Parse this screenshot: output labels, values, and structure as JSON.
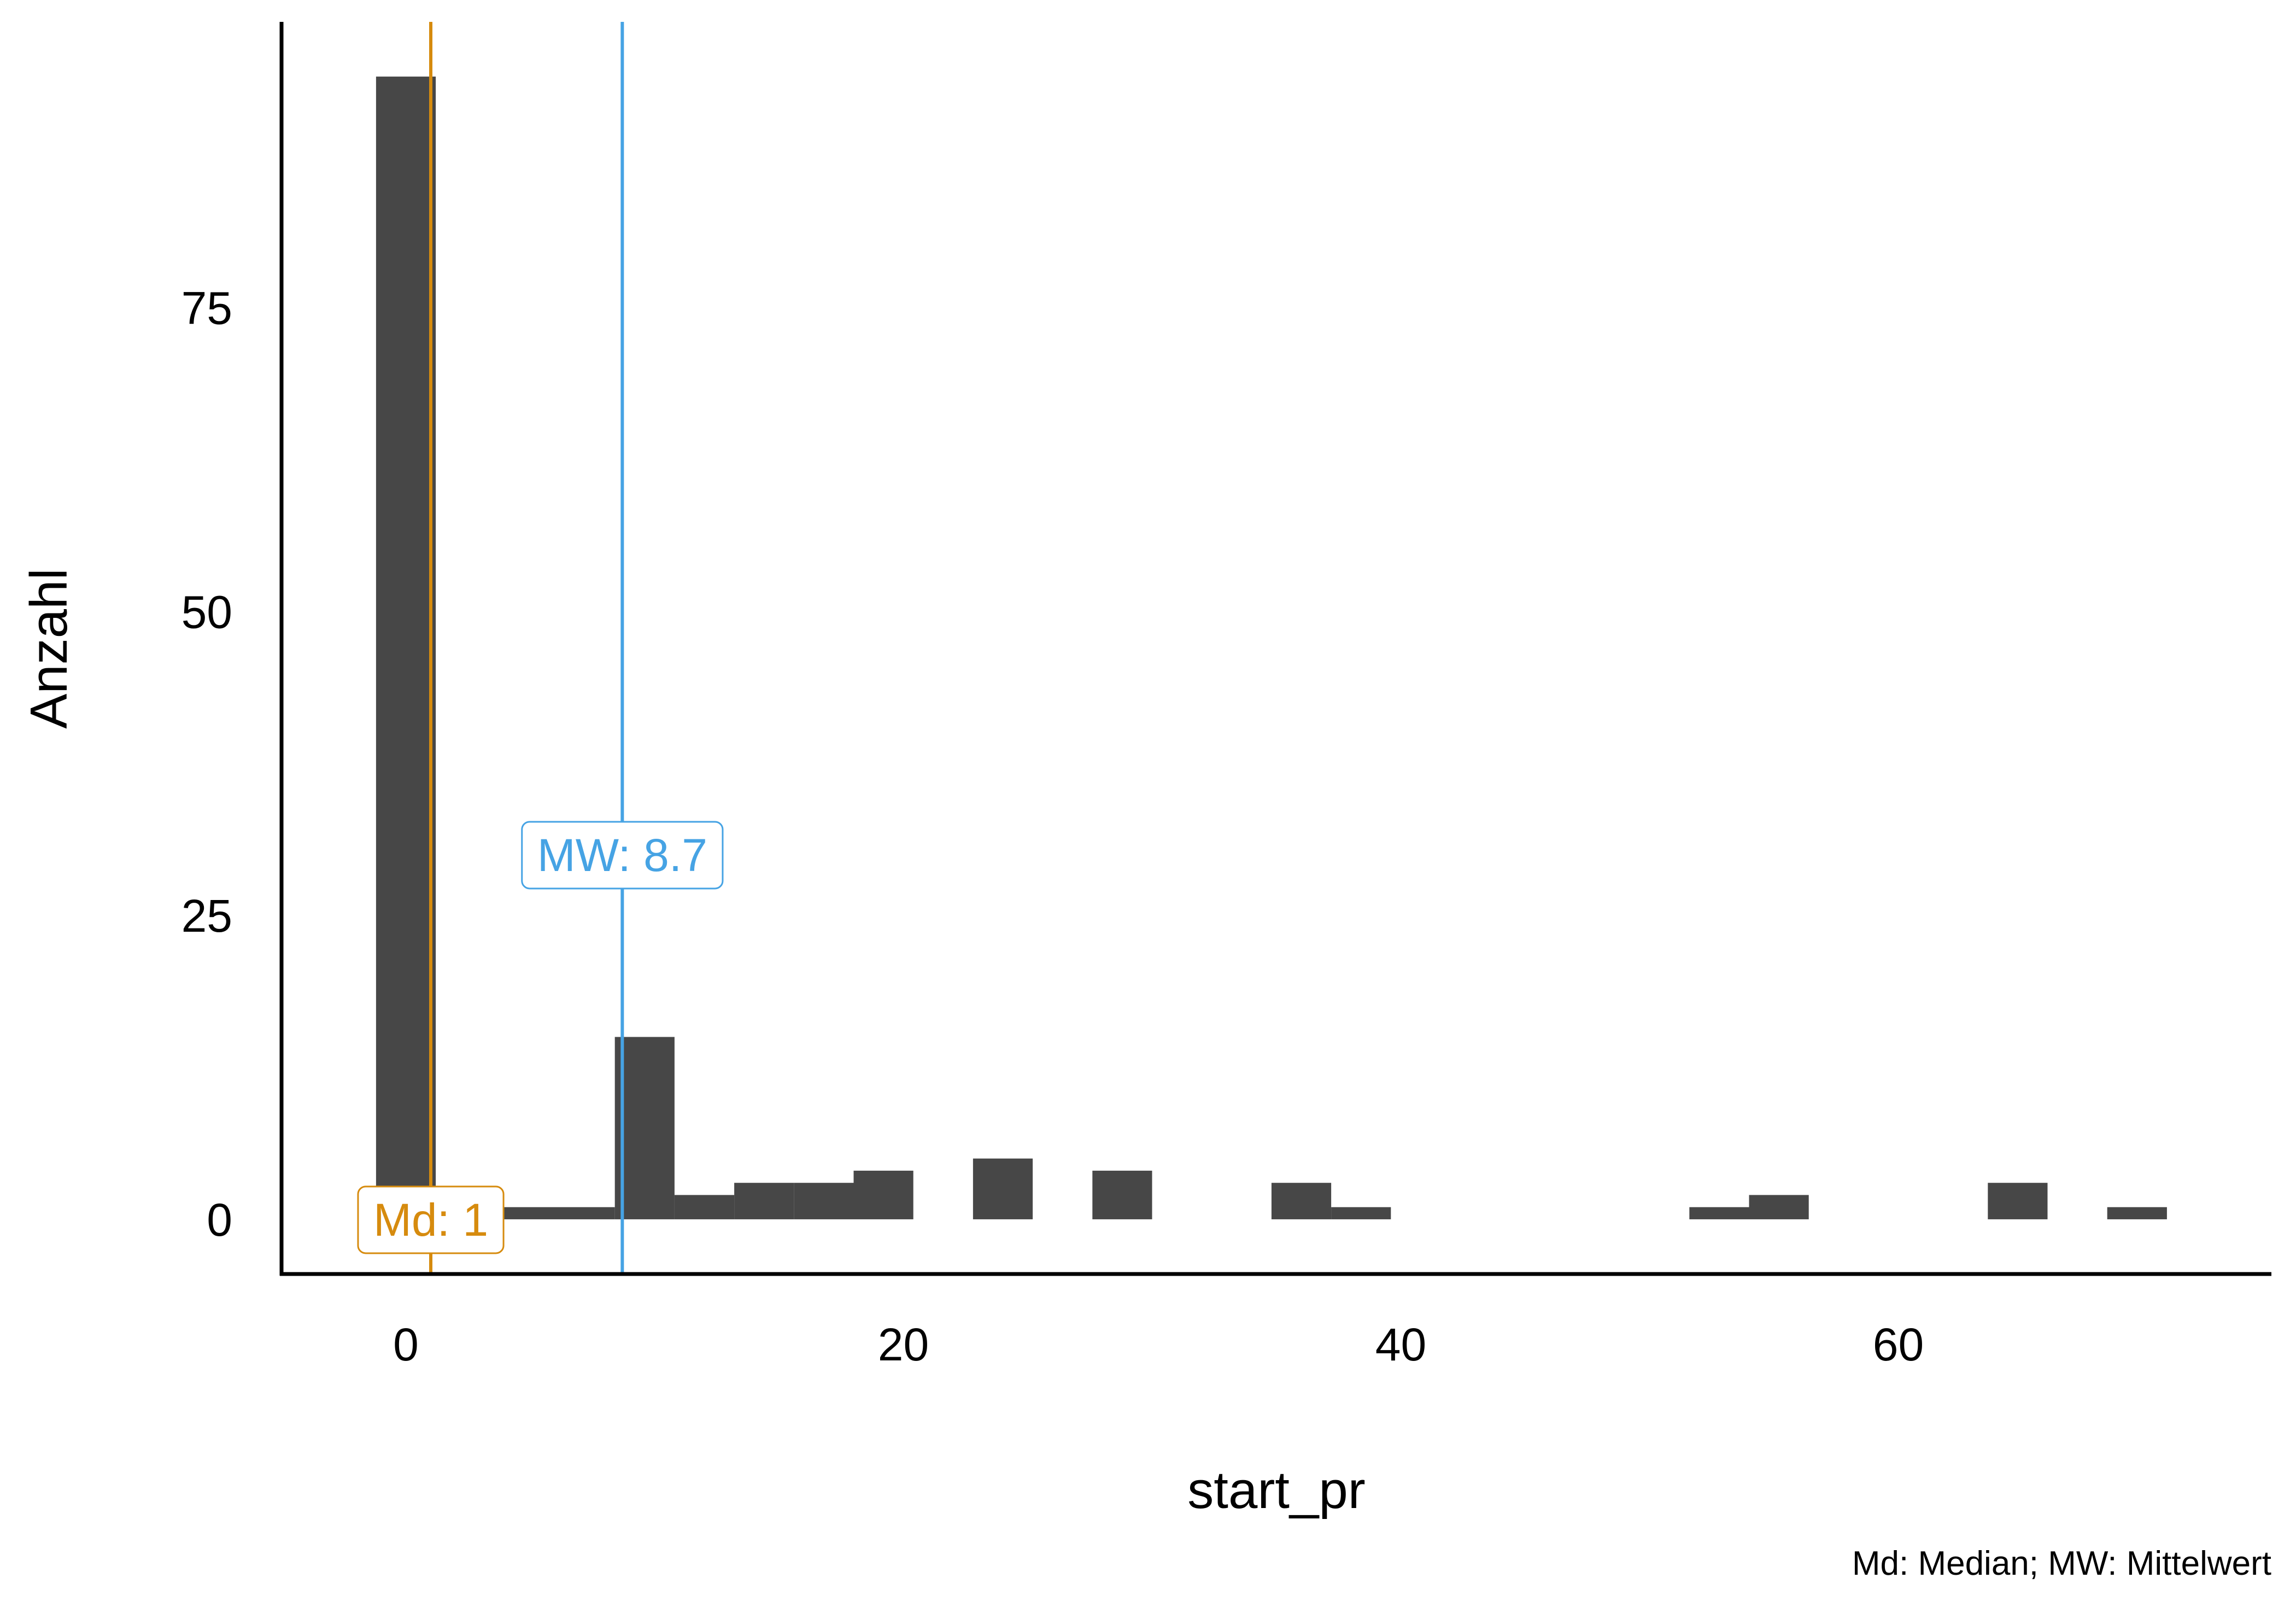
{
  "chart_data": {
    "type": "bar",
    "subtype": "histogram",
    "xlabel": "start_pr",
    "ylabel": "Anzahl",
    "caption": "Md: Median; MW: Mittelwert",
    "xlim": [
      -5,
      75
    ],
    "ylim": [
      -4.5,
      98.5
    ],
    "x_ticks": [
      {
        "value": 0,
        "label": "0"
      },
      {
        "value": 20,
        "label": "20"
      },
      {
        "value": 40,
        "label": "40"
      },
      {
        "value": 60,
        "label": "60"
      }
    ],
    "y_ticks": [
      {
        "value": 0,
        "label": "0"
      },
      {
        "value": 25,
        "label": "25"
      },
      {
        "value": 50,
        "label": "50"
      },
      {
        "value": 75,
        "label": "75"
      }
    ],
    "bin_width": 2.4,
    "bins": [
      {
        "x0": -1.2,
        "x1": 1.2,
        "count": 94
      },
      {
        "x0": 1.2,
        "x1": 3.6,
        "count": 1
      },
      {
        "x0": 3.6,
        "x1": 6.0,
        "count": 1
      },
      {
        "x0": 6.0,
        "x1": 8.4,
        "count": 1
      },
      {
        "x0": 8.4,
        "x1": 10.8,
        "count": 15
      },
      {
        "x0": 10.8,
        "x1": 13.2,
        "count": 2
      },
      {
        "x0": 13.2,
        "x1": 15.6,
        "count": 3
      },
      {
        "x0": 15.6,
        "x1": 18.0,
        "count": 3
      },
      {
        "x0": 18.0,
        "x1": 20.4,
        "count": 4
      },
      {
        "x0": 22.8,
        "x1": 25.2,
        "count": 5
      },
      {
        "x0": 27.6,
        "x1": 30.0,
        "count": 4
      },
      {
        "x0": 34.8,
        "x1": 37.2,
        "count": 3
      },
      {
        "x0": 37.2,
        "x1": 39.6,
        "count": 1
      },
      {
        "x0": 51.6,
        "x1": 54.0,
        "count": 1
      },
      {
        "x0": 54.0,
        "x1": 56.4,
        "count": 2
      },
      {
        "x0": 63.6,
        "x1": 66.0,
        "count": 3
      },
      {
        "x0": 68.4,
        "x1": 70.8,
        "count": 1
      }
    ],
    "bar_color": "#474747",
    "reference_lines": [
      {
        "name": "Md",
        "label": "Md: 1",
        "x": 1,
        "label_y": 0,
        "color": "#D68B0E"
      },
      {
        "name": "MW",
        "label": "MW: 8.7",
        "x": 8.7,
        "label_y": 30,
        "color": "#46A3E4"
      }
    ],
    "grid": false,
    "legend": "none"
  }
}
